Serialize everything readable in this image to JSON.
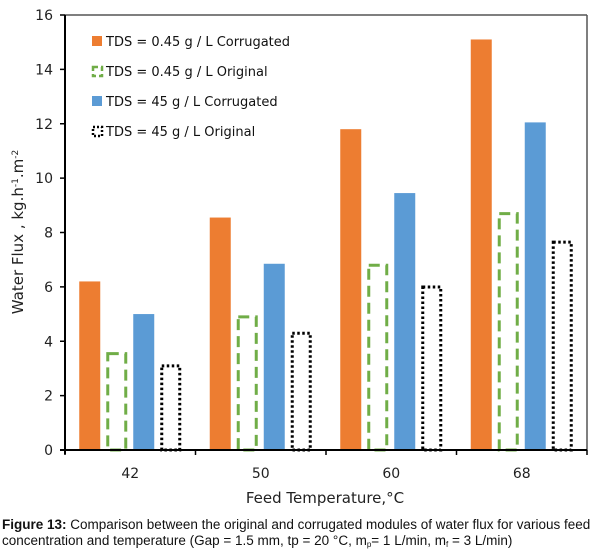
{
  "chart_data": {
    "type": "bar",
    "title": "",
    "xlabel": "Feed Temperature,°C",
    "ylabel": "Water Flux , kg.h-1.m-2",
    "ylabel_parts": {
      "main": "Water Flux , kg.h",
      "sup1": "-1",
      "mid": ".m",
      "sup2": "-2"
    },
    "ylim": [
      0,
      16
    ],
    "yticks": [
      0,
      2,
      4,
      6,
      8,
      10,
      12,
      14,
      16
    ],
    "categories": [
      "42",
      "50",
      "60",
      "68"
    ],
    "legend_position": "top-left",
    "grid": false,
    "series": [
      {
        "name": "TDS = 0.45 g / L  Corrugated",
        "style": "solid",
        "color": "#ED7D31",
        "values": [
          6.2,
          8.55,
          11.8,
          15.1
        ]
      },
      {
        "name": "TDS = 0.45 g / L  Original",
        "style": "dashed",
        "color": "#70AD47",
        "values": [
          3.6,
          4.95,
          6.85,
          8.75
        ]
      },
      {
        "name": "TDS = 45 g / L  Corrugated",
        "style": "solid",
        "color": "#5B9BD5",
        "values": [
          5.0,
          6.85,
          9.45,
          12.05
        ]
      },
      {
        "name": "TDS = 45 g / L  Original",
        "style": "dotted",
        "color": "#000000",
        "values": [
          3.15,
          4.35,
          6.05,
          7.7
        ]
      }
    ]
  },
  "caption": {
    "label": "Figure 13:",
    "text_before": " Comparison between the original and corrugated modules of water flux for various feed concentration and temperature (Gap = 1.5 mm, tp = 20 °C, m",
    "sub_p": "p",
    "text_mid": "= 1 L/min, m",
    "sub_f": "f",
    "text_after": " = 3 L/min)"
  }
}
